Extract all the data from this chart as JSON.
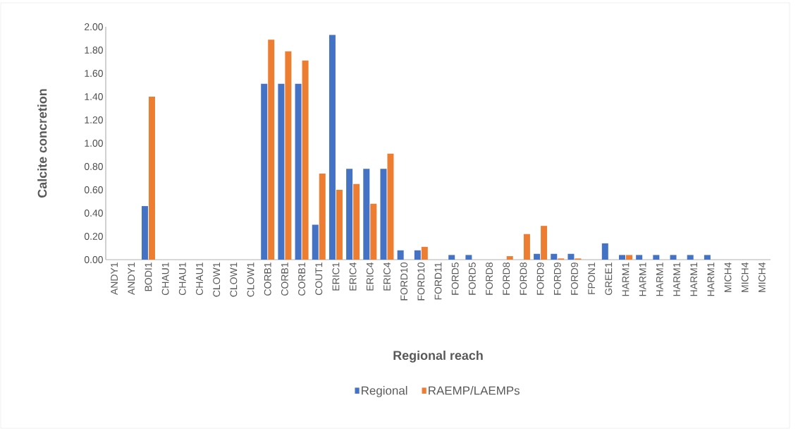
{
  "chart_data": {
    "type": "bar",
    "xlabel": "Regional reach",
    "ylabel": "Calcite concretion",
    "categories": [
      "ANDY1",
      "ANDY1",
      "BODI1",
      "CHAU1",
      "CHAU1",
      "CHAU1",
      "CLOW1",
      "CLOW1",
      "CLOW1",
      "CORB1",
      "CORB1",
      "CORB1",
      "COUT1",
      "ERIC1",
      "ERIC4",
      "ERIC4",
      "ERIC4",
      "FORD10",
      "FORD10",
      "FORD11",
      "FORD5",
      "FORD5",
      "FORD8",
      "FORD8",
      "FORD8",
      "FORD9",
      "FORD9",
      "FORD9",
      "FPON1",
      "GREE1",
      "HARM1",
      "HARM1",
      "HARM1",
      "HARM1",
      "HARM1",
      "HARM1",
      "MICH4",
      "MICH4",
      "MICH4"
    ],
    "series": [
      {
        "name": "Regional",
        "color": "#4472c4",
        "values": [
          null,
          null,
          0.46,
          null,
          null,
          null,
          null,
          null,
          null,
          1.51,
          1.51,
          1.51,
          0.3,
          1.93,
          0.78,
          0.78,
          0.78,
          0.08,
          0.08,
          null,
          0.04,
          0.04,
          null,
          null,
          null,
          0.05,
          0.05,
          0.05,
          null,
          0.14,
          0.04,
          0.04,
          0.04,
          0.04,
          0.04,
          0.04,
          null,
          null,
          null
        ]
      },
      {
        "name": "RAEMP/LAEMPs",
        "color": "#ed7d31",
        "values": [
          null,
          null,
          1.4,
          null,
          null,
          null,
          null,
          null,
          null,
          1.89,
          1.79,
          1.71,
          0.74,
          0.6,
          0.65,
          0.48,
          0.91,
          null,
          0.11,
          null,
          null,
          null,
          null,
          0.03,
          0.22,
          0.29,
          0.01,
          0.01,
          null,
          null,
          0.04,
          null,
          null,
          null,
          null,
          null,
          null,
          null,
          null
        ]
      }
    ],
    "ylim": [
      0,
      2
    ],
    "yticks": [
      {
        "value": 0,
        "label": "0.00"
      },
      {
        "value": 0.2,
        "label": "0.20"
      },
      {
        "value": 0.4,
        "label": "0.40"
      },
      {
        "value": 0.6,
        "label": "0.60"
      },
      {
        "value": 0.8,
        "label": "0.80"
      },
      {
        "value": 1.0,
        "label": "1.00"
      },
      {
        "value": 1.2,
        "label": "1.20"
      },
      {
        "value": 1.4,
        "label": "1.40"
      },
      {
        "value": 1.6,
        "label": "1.60"
      },
      {
        "value": 1.8,
        "label": "1.80"
      },
      {
        "value": 2.0,
        "label": "2.00"
      }
    ],
    "grid": false,
    "legend": "bottom"
  }
}
